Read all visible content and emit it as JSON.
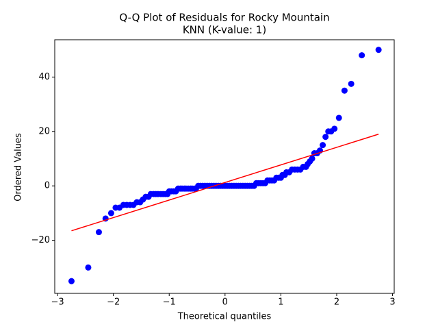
{
  "chart_data": {
    "type": "scatter",
    "title": "Q-Q Plot of Residuals for Rocky Mountain",
    "subtitle": "KNN (K-value: 1)",
    "x_label": "Theoretical quantiles",
    "y_label": "Ordered Values",
    "xlim": [
      -3.05,
      3.03
    ],
    "ylim": [
      -39.5,
      53.7
    ],
    "xticks": [
      {
        "value": -3,
        "label": "−3"
      },
      {
        "value": -2,
        "label": "−2"
      },
      {
        "value": -1,
        "label": "−1"
      },
      0,
      1,
      2,
      3
    ],
    "yticks": [
      {
        "value": -20,
        "label": "−20"
      },
      0,
      20,
      40
    ],
    "grid": false,
    "series": [
      {
        "color": "#0000ff",
        "kind": "points",
        "x": [
          -2.75,
          -2.45,
          -2.26,
          -2.14,
          -2.04,
          -1.96,
          -1.89,
          -1.82,
          -1.76,
          -1.7,
          -1.64,
          -1.58,
          -1.52,
          -1.47,
          -1.42,
          -1.37,
          -1.33,
          -1.28,
          -1.24,
          -1.2,
          -1.15,
          -1.11,
          -1.07,
          -1.03,
          -1.0,
          -0.96,
          -0.92,
          -0.88,
          -0.84,
          -0.8,
          -0.77,
          -0.73,
          -0.7,
          -0.66,
          -0.62,
          -0.59,
          -0.55,
          -0.52,
          -0.48,
          -0.44,
          -0.4,
          -0.36,
          -0.32,
          -0.28,
          -0.24,
          -0.2,
          -0.16,
          -0.12,
          -0.08,
          -0.04,
          0,
          0.04,
          0.08,
          0.12,
          0.16,
          0.2,
          0.24,
          0.28,
          0.32,
          0.36,
          0.4,
          0.44,
          0.48,
          0.52,
          0.56,
          0.6,
          0.64,
          0.68,
          0.72,
          0.76,
          0.8,
          0.84,
          0.88,
          0.92,
          0.96,
          1.0,
          1.03,
          1.07,
          1.1,
          1.15,
          1.2,
          1.25,
          1.3,
          1.35,
          1.4,
          1.45,
          1.48,
          1.52,
          1.56,
          1.6,
          1.65,
          1.7,
          1.75,
          1.8,
          1.85,
          1.9,
          1.96,
          2.04,
          2.14,
          2.26,
          2.45,
          2.75
        ],
        "values": [
          -35,
          -30,
          -17,
          -12,
          -10,
          -8,
          -8,
          -7,
          -7,
          -7,
          -7,
          -6,
          -6,
          -5,
          -4,
          -4,
          -3,
          -3,
          -3,
          -3,
          -3,
          -3,
          -3,
          -3,
          -2,
          -2,
          -2,
          -2,
          -1,
          -1,
          -1,
          -1,
          -1,
          -1,
          -1,
          -1,
          -1,
          -1,
          0,
          0,
          0,
          0,
          0,
          0,
          0,
          0,
          0,
          0,
          0,
          0,
          0,
          0,
          0,
          0,
          0,
          0,
          0,
          0,
          0,
          0,
          0,
          0,
          0,
          0,
          1,
          1,
          1,
          1,
          1,
          2,
          2,
          2,
          2,
          3,
          3,
          3,
          4,
          4,
          5,
          5,
          6,
          6,
          6,
          6,
          7,
          7,
          8,
          9,
          10,
          12,
          12,
          13,
          15,
          18,
          20,
          20,
          21,
          25,
          35,
          37.5,
          48,
          50
        ]
      },
      {
        "color": "#ff0000",
        "kind": "line",
        "x": [
          -2.75,
          2.75
        ],
        "values": [
          -16.5,
          19
        ]
      }
    ]
  }
}
